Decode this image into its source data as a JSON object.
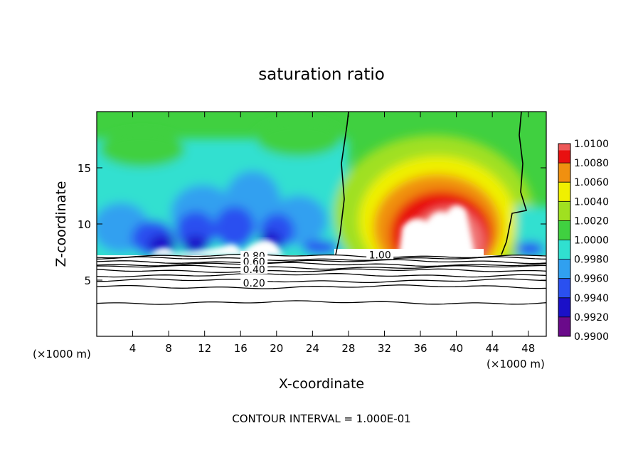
{
  "chart_data": {
    "type": "heatmap",
    "title": "saturation ratio",
    "xlabel": "X-coordinate",
    "ylabel": "Z-coordinate",
    "xunit": "(×1000 m)",
    "xlim": [
      0,
      50
    ],
    "ylim": [
      0,
      20
    ],
    "xticks": [
      4,
      8,
      12,
      16,
      20,
      24,
      28,
      32,
      36,
      40,
      44,
      48
    ],
    "yticks": [
      5,
      10,
      15
    ],
    "footer": "CONTOUR INTERVAL = 1.000E-01",
    "colorbar": {
      "levels": [
        "0.9900",
        "0.9920",
        "0.9940",
        "0.9960",
        "0.9980",
        "1.0000",
        "1.0020",
        "1.0040",
        "1.0060",
        "1.0080",
        "1.0100"
      ],
      "colors": [
        "#6a0a8a",
        "#1a10c8",
        "#2a50f0",
        "#30a0f0",
        "#30e0d0",
        "#40d040",
        "#a0e020",
        "#f0f000",
        "#f09010",
        "#e81010",
        "#f07878"
      ]
    },
    "contour_labels": [
      {
        "text": "1.00",
        "x": 31.5,
        "y": 7.0
      },
      {
        "text": "0.80",
        "x": 17.5,
        "y": 6.9
      },
      {
        "text": "0.60",
        "x": 17.5,
        "y": 6.4
      },
      {
        "text": "0.40",
        "x": 17.5,
        "y": 5.7
      },
      {
        "text": "0.20",
        "x": 17.5,
        "y": 4.5
      }
    ],
    "contour_levels_z": [
      7.15,
      6.9,
      6.65,
      6.4,
      6.15,
      5.85,
      5.45,
      4.95,
      4.4,
      3.0
    ]
  }
}
